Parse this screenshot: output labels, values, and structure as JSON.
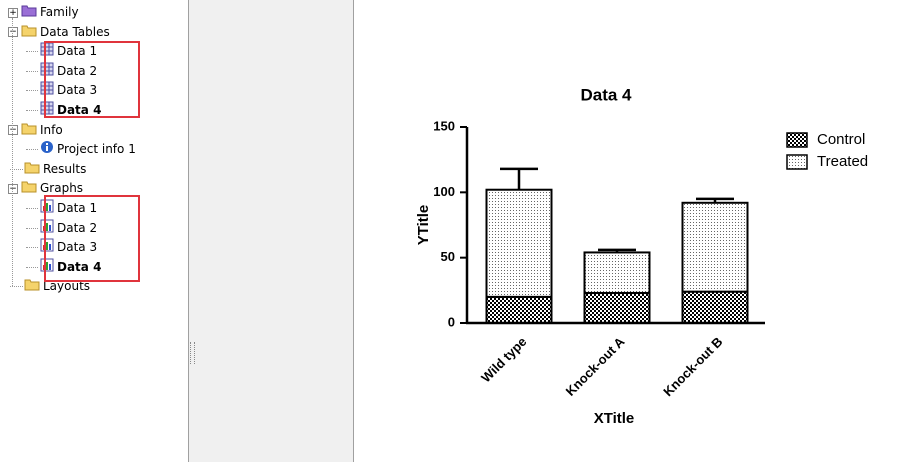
{
  "tree": {
    "items": [
      {
        "label": "Family",
        "level": 0,
        "icon": "family",
        "expanded": false
      },
      {
        "label": "Data Tables",
        "level": 0,
        "icon": "folder",
        "expanded": true
      },
      {
        "label": "Data 1",
        "level": 1,
        "icon": "table"
      },
      {
        "label": "Data 2",
        "level": 1,
        "icon": "table"
      },
      {
        "label": "Data 3",
        "level": 1,
        "icon": "table"
      },
      {
        "label": "Data 4",
        "level": 1,
        "icon": "table",
        "bold": true
      },
      {
        "label": "Info",
        "level": 0,
        "icon": "folder",
        "expanded": true
      },
      {
        "label": "Project info 1",
        "level": 1,
        "icon": "info"
      },
      {
        "label": "Results",
        "level": 0,
        "icon": "folder"
      },
      {
        "label": "Graphs",
        "level": 0,
        "icon": "folder",
        "expanded": true
      },
      {
        "label": "Data 1",
        "level": 1,
        "icon": "graph"
      },
      {
        "label": "Data 2",
        "level": 1,
        "icon": "graph"
      },
      {
        "label": "Data 3",
        "level": 1,
        "icon": "graph"
      },
      {
        "label": "Data 4",
        "level": 1,
        "icon": "graph",
        "bold": true
      },
      {
        "label": "Layouts",
        "level": 0,
        "icon": "folder"
      }
    ]
  },
  "chart_data": {
    "type": "stacked_bar",
    "title": "Data 4",
    "x_label": "XTitle",
    "y_label": "YTitle",
    "categories": [
      "Wild type",
      "Knock-out A",
      "Knock-out B"
    ],
    "series": [
      {
        "name": "Control",
        "pattern": "checker",
        "values": [
          20,
          23,
          24
        ],
        "errors": [
          3,
          1,
          3
        ]
      },
      {
        "name": "Treated",
        "pattern": "dots",
        "values": [
          82,
          31,
          68
        ],
        "errors": [
          16,
          2,
          3
        ]
      }
    ],
    "ylim": [
      0,
      150
    ],
    "yticks": [
      0,
      50,
      100,
      150
    ],
    "legend": "upper right"
  }
}
